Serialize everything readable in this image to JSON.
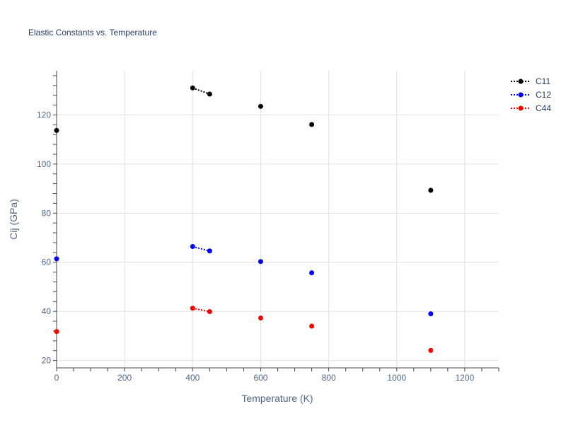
{
  "chart_data": {
    "type": "scatter",
    "title": "Elastic Constants vs. Temperature",
    "xlabel": "Temperature (K)",
    "ylabel": "Cij (GPa)",
    "xlim": [
      0,
      1300
    ],
    "ylim": [
      17,
      138
    ],
    "xticks": [
      0,
      200,
      400,
      600,
      800,
      1000,
      1200
    ],
    "yticks": [
      20,
      40,
      60,
      80,
      100,
      120
    ],
    "grid": true,
    "legend_position": "top-right",
    "series": [
      {
        "name": "C11",
        "color": "#000000",
        "x": [
          0,
          400,
          450,
          600,
          750,
          1100
        ],
        "y": [
          113.7,
          131.0,
          128.5,
          123.5,
          116.1,
          89.3
        ],
        "segments": [
          [
            400,
            450
          ]
        ]
      },
      {
        "name": "C12",
        "color": "#0000ff",
        "x": [
          0,
          400,
          450,
          600,
          750,
          1100
        ],
        "y": [
          61.4,
          66.4,
          64.6,
          60.3,
          55.7,
          39.0
        ],
        "segments": [
          [
            400,
            450
          ]
        ]
      },
      {
        "name": "C44",
        "color": "#ff0000",
        "x": [
          0,
          400,
          450,
          600,
          750,
          1100
        ],
        "y": [
          31.8,
          41.3,
          39.9,
          37.3,
          34.0,
          24.1
        ],
        "segments": [
          [
            400,
            450
          ]
        ]
      }
    ]
  }
}
